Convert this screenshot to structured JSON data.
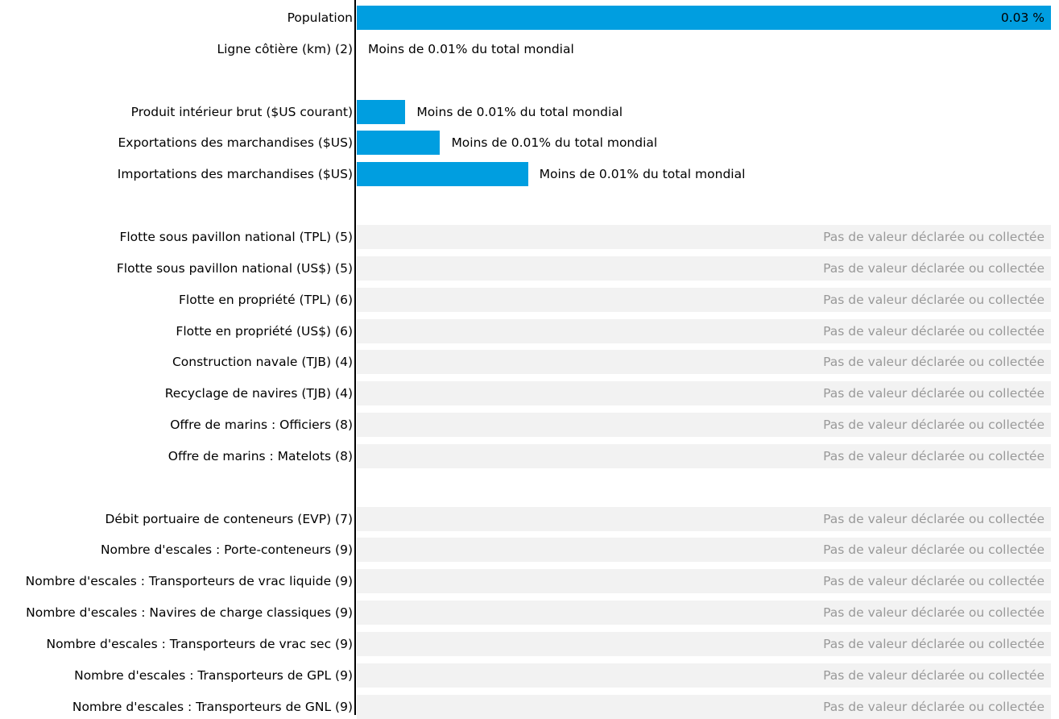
{
  "chart_data": {
    "type": "bar",
    "orientation": "horizontal",
    "colors": {
      "bar": "#009ee0",
      "no_data_track": "#f2f2f2",
      "no_data_text": "#999999"
    },
    "bar_scale_max_percent": 0.03,
    "rows": [
      {
        "label": "Population",
        "value": 0.03,
        "note": "0.03 %",
        "status": "value"
      },
      {
        "label": "Ligne côtière (km) (2)",
        "value": 0,
        "note": "Moins de 0.01% du total mondial",
        "status": "small"
      },
      {
        "label": "",
        "status": "gap"
      },
      {
        "label": "Produit intérieur brut ($US courant)",
        "value": 0.0021,
        "note": "Moins de 0.01% du total mondial",
        "status": "small"
      },
      {
        "label": "Exportations des marchandises ($US)",
        "value": 0.0036,
        "note": "Moins de 0.01% du total mondial",
        "status": "small"
      },
      {
        "label": "Importations des marchandises ($US)",
        "value": 0.0074,
        "note": "Moins de 0.01% du total mondial",
        "status": "small"
      },
      {
        "label": "",
        "status": "gap"
      },
      {
        "label": "Flotte sous pavillon national (TPL) (5)",
        "note": "Pas de valeur déclarée ou collectée",
        "status": "na"
      },
      {
        "label": "Flotte sous pavillon national (US$) (5)",
        "note": "Pas de valeur déclarée ou collectée",
        "status": "na"
      },
      {
        "label": "Flotte en propriété (TPL) (6)",
        "note": "Pas de valeur déclarée ou collectée",
        "status": "na"
      },
      {
        "label": "Flotte en propriété (US$) (6)",
        "note": "Pas de valeur déclarée ou collectée",
        "status": "na"
      },
      {
        "label": "Construction navale (TJB) (4)",
        "note": "Pas de valeur déclarée ou collectée",
        "status": "na"
      },
      {
        "label": "Recyclage de navires (TJB) (4)",
        "note": "Pas de valeur déclarée ou collectée",
        "status": "na"
      },
      {
        "label": "Offre de marins : Officiers (8)",
        "note": "Pas de valeur déclarée ou collectée",
        "status": "na"
      },
      {
        "label": "Offre de marins : Matelots (8)",
        "note": "Pas de valeur déclarée ou collectée",
        "status": "na"
      },
      {
        "label": "",
        "status": "gap"
      },
      {
        "label": "Débit portuaire de conteneurs (EVP) (7)",
        "note": "Pas de valeur déclarée ou collectée",
        "status": "na"
      },
      {
        "label": "Nombre d'escales : Porte-conteneurs (9)",
        "note": "Pas de valeur déclarée ou collectée",
        "status": "na"
      },
      {
        "label": "Nombre d'escales : Transporteurs de vrac liquide (9)",
        "note": "Pas de valeur déclarée ou collectée",
        "status": "na"
      },
      {
        "label": "Nombre d'escales : Navires de charge classiques (9)",
        "note": "Pas de valeur déclarée ou collectée",
        "status": "na"
      },
      {
        "label": "Nombre d'escales : Transporteurs de vrac sec (9)",
        "note": "Pas de valeur déclarée ou collectée",
        "status": "na"
      },
      {
        "label": "Nombre d'escales : Transporteurs de GPL (9)",
        "note": "Pas de valeur déclarée ou collectée",
        "status": "na"
      },
      {
        "label": "Nombre d'escales : Transporteurs de GNL (9)",
        "note": "Pas de valeur déclarée ou collectée",
        "status": "na"
      }
    ]
  }
}
